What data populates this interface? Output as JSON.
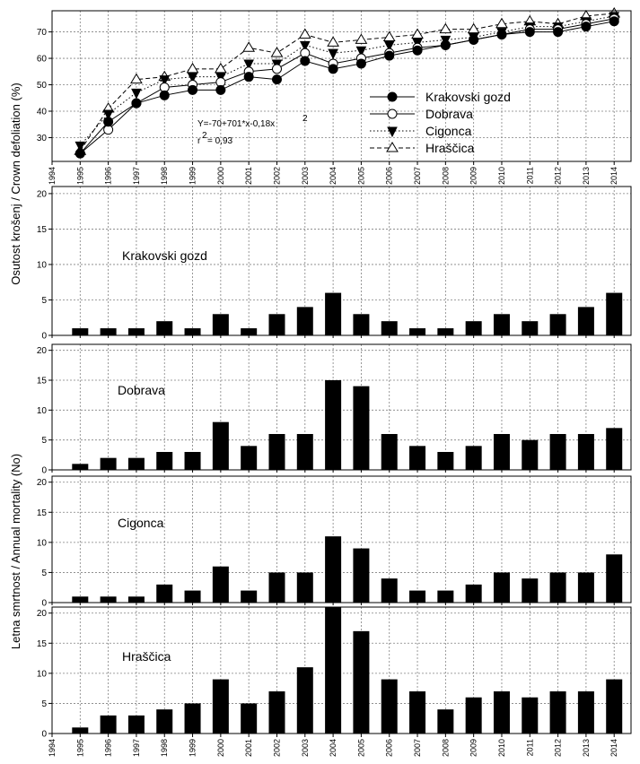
{
  "colors": {
    "ink": "#000000",
    "grid": "#808080",
    "open_marker_fill": "#ffffff"
  },
  "axis_labels": {
    "defoliation": "Osutost krošenj / Crown defoliation (%)",
    "mortality": "Letna smrtnost /  Annual mortality (No)"
  },
  "x_ticks": [
    "1994",
    "1995",
    "1996",
    "1997",
    "1998",
    "1999",
    "2000",
    "2001",
    "2002",
    "2003",
    "2004",
    "2005",
    "2006",
    "2007",
    "2008",
    "2009",
    "2010",
    "2011",
    "2012",
    "2013",
    "2014"
  ],
  "chart_data": [
    {
      "type": "line",
      "title": "",
      "ylabel": "Osutost krošenj / Crown defoliation (%)",
      "ylim": [
        21,
        78
      ],
      "yticks": [
        30,
        40,
        50,
        60,
        70
      ],
      "x": [
        1995,
        1996,
        1997,
        1998,
        1999,
        2000,
        2001,
        2002,
        2003,
        2004,
        2005,
        2006,
        2007,
        2008,
        2009,
        2010,
        2011,
        2012,
        2013,
        2014
      ],
      "grid": true,
      "legend_position": "center-right",
      "annotation": {
        "equation": "Y=-70+701*x-0,18x",
        "superscript": "2",
        "r2_prefix": "r",
        "r2_superscript": "2",
        "r2_value": " = 0,93"
      },
      "series": [
        {
          "name": "Krakovski gozd",
          "marker": "filled-circle",
          "line": "solid",
          "values": [
            24,
            36,
            43,
            46,
            48,
            48,
            53,
            52,
            59,
            56,
            58,
            61,
            63,
            65,
            67,
            69,
            70,
            70,
            72,
            74
          ]
        },
        {
          "name": "Dobrava",
          "marker": "open-circle",
          "line": "solid",
          "values": [
            24,
            33,
            43,
            49,
            50,
            51,
            55,
            56,
            62,
            58,
            60,
            62,
            64,
            65,
            67,
            69,
            71,
            71,
            73,
            75
          ]
        },
        {
          "name": "Cigonca",
          "marker": "filled-triangle-down",
          "line": "dotted",
          "values": [
            27,
            39,
            47,
            52,
            53,
            53,
            58,
            58,
            65,
            62,
            63,
            65,
            66,
            67,
            68,
            70,
            72,
            72,
            74,
            76
          ]
        },
        {
          "name": "Hraščica",
          "marker": "open-triangle-up",
          "line": "dashed",
          "values": [
            25,
            41,
            52,
            53,
            56,
            56,
            64,
            62,
            69,
            66,
            67,
            68,
            69,
            71,
            71,
            73,
            74,
            73,
            76,
            77
          ]
        }
      ]
    },
    {
      "type": "bar",
      "title": "Krakovski gozd",
      "ylim": [
        0,
        21
      ],
      "yticks": [
        0,
        5,
        10,
        15,
        20
      ],
      "categories": [
        "1995",
        "1996",
        "1997",
        "1998",
        "1999",
        "2000",
        "2001",
        "2002",
        "2003",
        "2004",
        "2005",
        "2006",
        "2007",
        "2008",
        "2009",
        "2010",
        "2011",
        "2012",
        "2013",
        "2014"
      ],
      "values": [
        1,
        1,
        1,
        2,
        1,
        3,
        1,
        3,
        4,
        6,
        3,
        2,
        1,
        1,
        2,
        3,
        2,
        3,
        4,
        6
      ]
    },
    {
      "type": "bar",
      "title": "Dobrava",
      "ylim": [
        0,
        21
      ],
      "yticks": [
        0,
        5,
        10,
        15,
        20
      ],
      "categories": [
        "1995",
        "1996",
        "1997",
        "1998",
        "1999",
        "2000",
        "2001",
        "2002",
        "2003",
        "2004",
        "2005",
        "2006",
        "2007",
        "2008",
        "2009",
        "2010",
        "2011",
        "2012",
        "2013",
        "2014"
      ],
      "values": [
        1,
        2,
        2,
        3,
        3,
        8,
        4,
        6,
        6,
        15,
        14,
        6,
        4,
        3,
        4,
        6,
        5,
        6,
        6,
        7
      ]
    },
    {
      "type": "bar",
      "title": "Cigonca",
      "ylim": [
        0,
        21
      ],
      "yticks": [
        0,
        5,
        10,
        15,
        20
      ],
      "categories": [
        "1995",
        "1996",
        "1997",
        "1998",
        "1999",
        "2000",
        "2001",
        "2002",
        "2003",
        "2004",
        "2005",
        "2006",
        "2007",
        "2008",
        "2009",
        "2010",
        "2011",
        "2012",
        "2013",
        "2014"
      ],
      "values": [
        1,
        1,
        1,
        3,
        2,
        6,
        2,
        5,
        5,
        11,
        9,
        4,
        2,
        2,
        3,
        5,
        4,
        5,
        5,
        8
      ]
    },
    {
      "type": "bar",
      "title": "Hraščica",
      "ylim": [
        0,
        21
      ],
      "yticks": [
        0,
        5,
        10,
        15,
        20
      ],
      "categories": [
        "1995",
        "1996",
        "1997",
        "1998",
        "1999",
        "2000",
        "2001",
        "2002",
        "2003",
        "2004",
        "2005",
        "2006",
        "2007",
        "2008",
        "2009",
        "2010",
        "2011",
        "2012",
        "2013",
        "2014"
      ],
      "values": [
        1,
        3,
        3,
        4,
        5,
        9,
        5,
        7,
        11,
        21,
        17,
        9,
        7,
        4,
        6,
        7,
        6,
        7,
        7,
        9
      ]
    }
  ]
}
